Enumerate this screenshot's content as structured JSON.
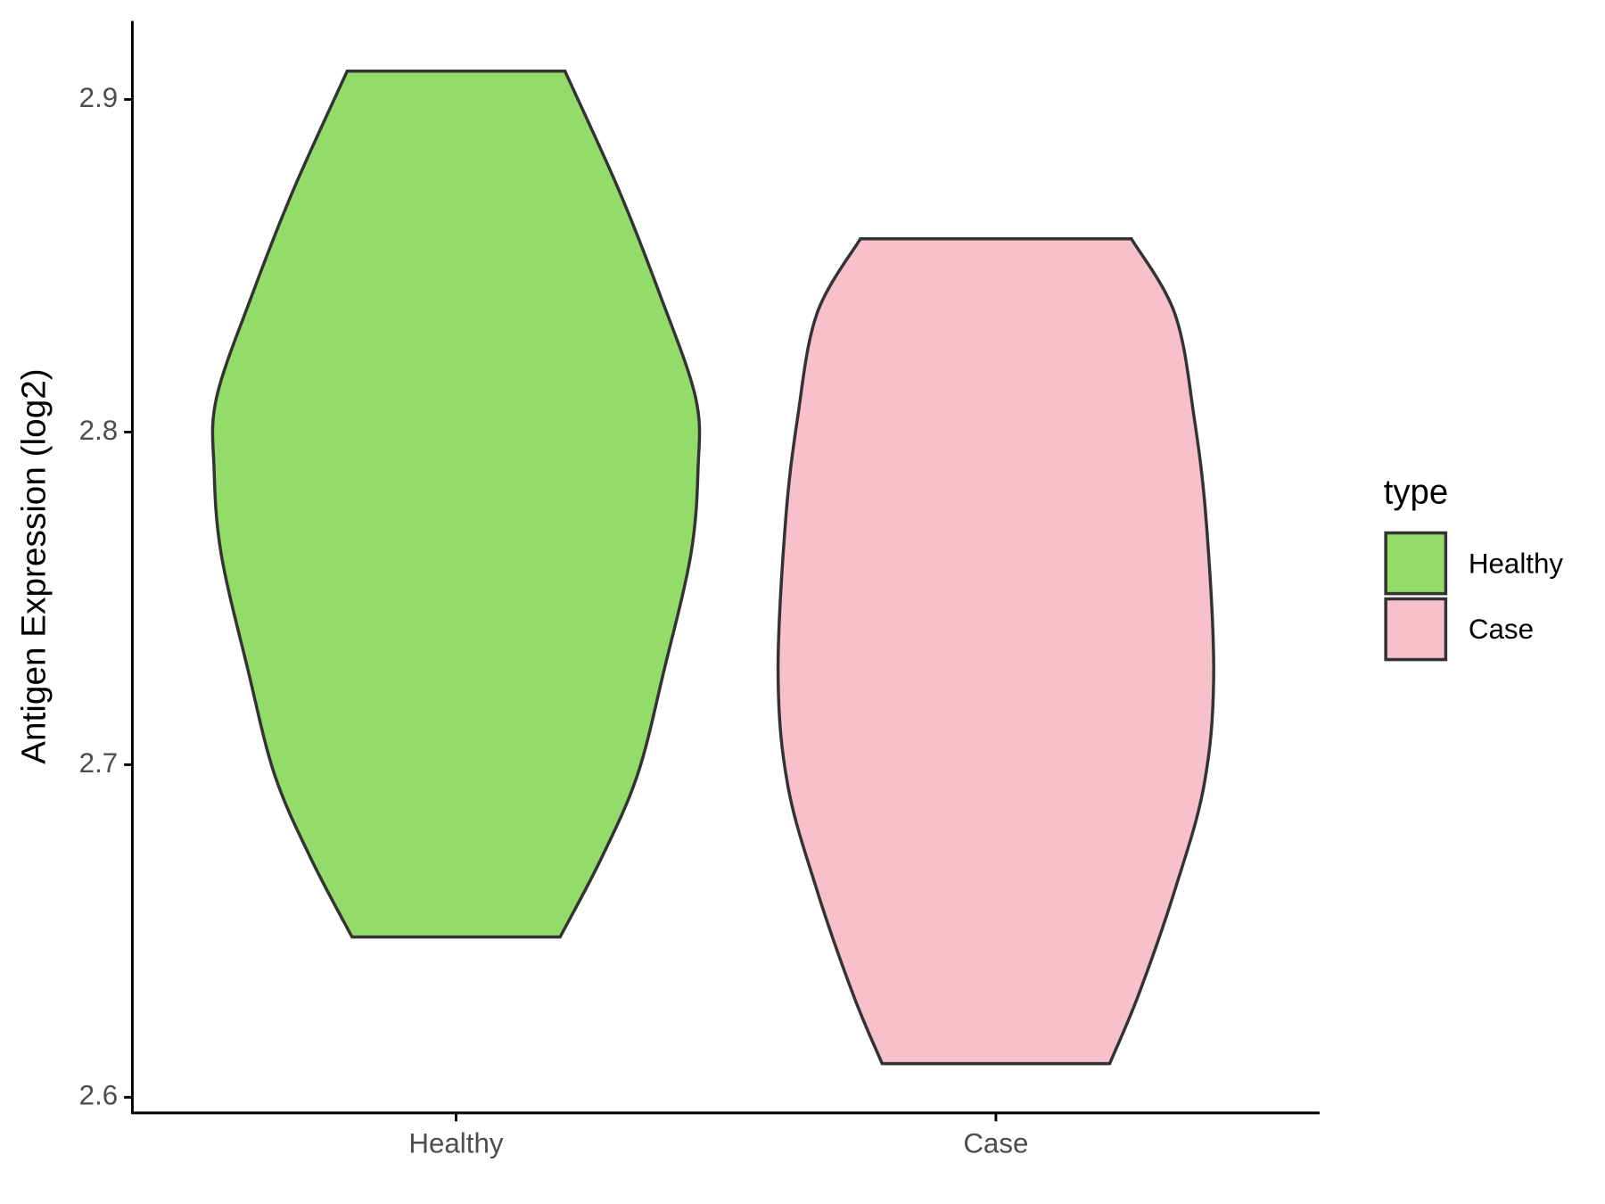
{
  "chart_data": {
    "type": "violin",
    "y_label": "Antigen Expression (log2)",
    "categories": [
      "Healthy",
      "Case"
    ],
    "legend_title": "type",
    "legend_position": "right",
    "ylim": [
      2.5953,
      2.9236
    ],
    "yticks": [
      2.6,
      2.7,
      2.8,
      2.9
    ],
    "series": [
      {
        "name": "Healthy",
        "color": "#93dc6a",
        "y": [
          2.9085,
          2.8732,
          2.8418,
          2.8103,
          2.7889,
          2.7631,
          2.7285,
          2.697,
          2.6718,
          2.6482
        ],
        "density": [
          0.45,
          0.67,
          0.84,
          0.99,
          1.0,
          0.97,
          0.86,
          0.75,
          0.6,
          0.43
        ]
      },
      {
        "name": "Case",
        "color": "#f7c0cb",
        "y": [
          2.8581,
          2.8355,
          2.804,
          2.7725,
          2.7269,
          2.6938,
          2.6624,
          2.6309,
          2.6101
        ],
        "density": [
          0.56,
          0.74,
          0.82,
          0.87,
          0.9,
          0.86,
          0.74,
          0.59,
          0.47
        ]
      }
    ]
  }
}
